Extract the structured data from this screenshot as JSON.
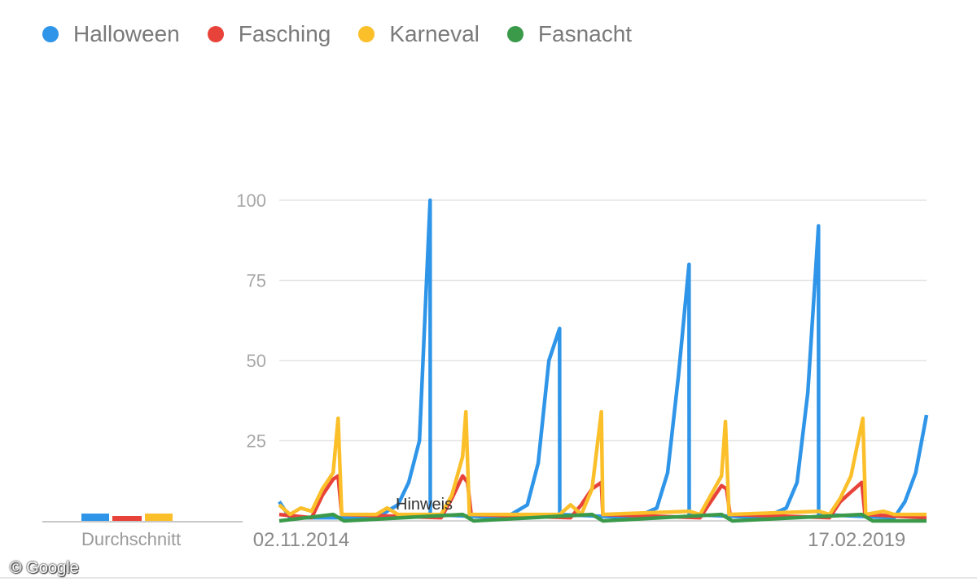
{
  "chart_data": {
    "type": "line",
    "title": "",
    "xlabel": "",
    "ylabel": "",
    "ylim": [
      0,
      100
    ],
    "y_ticks": [
      25,
      50,
      75,
      100
    ],
    "x_tick_labels": [
      "02.11.2014",
      "17.02.2019"
    ],
    "x_range": [
      "2014-09",
      "2019-09"
    ],
    "legend_position": "top-left",
    "grid": true,
    "annotation": "Hinweis",
    "series": [
      {
        "name": "Halloween",
        "color": "#2f95e8",
        "points": [
          [
            "2014-09",
            6
          ],
          [
            "2014-10",
            1
          ],
          [
            "2015-06",
            1
          ],
          [
            "2015-08",
            5
          ],
          [
            "2015-09",
            12
          ],
          [
            "2015-10",
            25
          ],
          [
            "2015-10-31",
            100
          ],
          [
            "2015-11",
            2
          ],
          [
            "2016-06",
            1
          ],
          [
            "2016-08",
            5
          ],
          [
            "2016-09",
            18
          ],
          [
            "2016-10",
            50
          ],
          [
            "2016-10-31",
            60
          ],
          [
            "2016-11",
            2
          ],
          [
            "2017-06",
            1
          ],
          [
            "2017-08",
            4
          ],
          [
            "2017-09",
            15
          ],
          [
            "2017-10",
            45
          ],
          [
            "2017-10-31",
            80
          ],
          [
            "2017-11",
            2
          ],
          [
            "2018-06",
            1
          ],
          [
            "2018-08",
            4
          ],
          [
            "2018-09",
            12
          ],
          [
            "2018-10",
            40
          ],
          [
            "2018-10-31",
            92
          ],
          [
            "2018-11",
            2
          ],
          [
            "2019-06",
            1
          ],
          [
            "2019-07",
            6
          ],
          [
            "2019-08",
            15
          ],
          [
            "2019-09",
            33
          ]
        ]
      },
      {
        "name": "Fasching",
        "color": "#e8433a",
        "points": [
          [
            "2014-09",
            2
          ],
          [
            "2014-12",
            1
          ],
          [
            "2015-01",
            8
          ],
          [
            "2015-02",
            13
          ],
          [
            "2015-02-15",
            14
          ],
          [
            "2015-02-25",
            2
          ],
          [
            "2015-12",
            1
          ],
          [
            "2016-01",
            7
          ],
          [
            "2016-02",
            14
          ],
          [
            "2016-02-15",
            12
          ],
          [
            "2016-02-25",
            2
          ],
          [
            "2016-12",
            1
          ],
          [
            "2017-01",
            5
          ],
          [
            "2017-02",
            10
          ],
          [
            "2017-02-27",
            12
          ],
          [
            "2017-03",
            2
          ],
          [
            "2017-12",
            1
          ],
          [
            "2018-01",
            6
          ],
          [
            "2018-02",
            11
          ],
          [
            "2018-02-15",
            10
          ],
          [
            "2018-02-25",
            2
          ],
          [
            "2018-12",
            1
          ],
          [
            "2019-01",
            6
          ],
          [
            "2019-02",
            9
          ],
          [
            "2019-03",
            12
          ],
          [
            "2019-03-10",
            2
          ],
          [
            "2019-09",
            1
          ]
        ]
      },
      {
        "name": "Karneval",
        "color": "#fbbf2a",
        "points": [
          [
            "2014-09",
            5
          ],
          [
            "2014-10",
            2
          ],
          [
            "2014-11",
            4
          ],
          [
            "2014-12",
            3
          ],
          [
            "2015-01",
            10
          ],
          [
            "2015-02",
            15
          ],
          [
            "2015-02-15",
            32
          ],
          [
            "2015-02-25",
            2
          ],
          [
            "2015-06",
            2
          ],
          [
            "2015-07",
            4
          ],
          [
            "2015-08",
            2
          ],
          [
            "2015-12",
            2
          ],
          [
            "2016-01",
            8
          ],
          [
            "2016-02",
            20
          ],
          [
            "2016-02-10",
            34
          ],
          [
            "2016-02-20",
            2
          ],
          [
            "2016-11",
            2
          ],
          [
            "2016-12",
            5
          ],
          [
            "2017-01",
            2
          ],
          [
            "2017-02",
            10
          ],
          [
            "2017-02-27",
            34
          ],
          [
            "2017-03",
            2
          ],
          [
            "2017-11",
            3
          ],
          [
            "2017-12",
            2
          ],
          [
            "2018-01",
            8
          ],
          [
            "2018-02",
            14
          ],
          [
            "2018-02-12",
            31
          ],
          [
            "2018-02-22",
            2
          ],
          [
            "2018-11",
            3
          ],
          [
            "2018-12",
            2
          ],
          [
            "2019-01",
            7
          ],
          [
            "2019-02",
            14
          ],
          [
            "2019-03-04",
            32
          ],
          [
            "2019-03-12",
            2
          ],
          [
            "2019-05",
            3
          ],
          [
            "2019-06",
            2
          ],
          [
            "2019-09",
            2
          ]
        ]
      },
      {
        "name": "Fasnacht",
        "color": "#3a9a4a",
        "points": [
          [
            "2014-09",
            0
          ],
          [
            "2015-02",
            2
          ],
          [
            "2015-03",
            0
          ],
          [
            "2016-02",
            2
          ],
          [
            "2016-03",
            0
          ],
          [
            "2017-02",
            2
          ],
          [
            "2017-03",
            0
          ],
          [
            "2018-02",
            2
          ],
          [
            "2018-03",
            0
          ],
          [
            "2019-03",
            2
          ],
          [
            "2019-04",
            0
          ],
          [
            "2019-09",
            0
          ]
        ]
      }
    ],
    "average": {
      "label": "Durchschnitt",
      "values": [
        {
          "name": "Halloween",
          "value": 3
        },
        {
          "name": "Fasching",
          "value": 2
        },
        {
          "name": "Karneval",
          "value": 3
        }
      ]
    }
  },
  "footer": {
    "copyright": "© Google"
  }
}
